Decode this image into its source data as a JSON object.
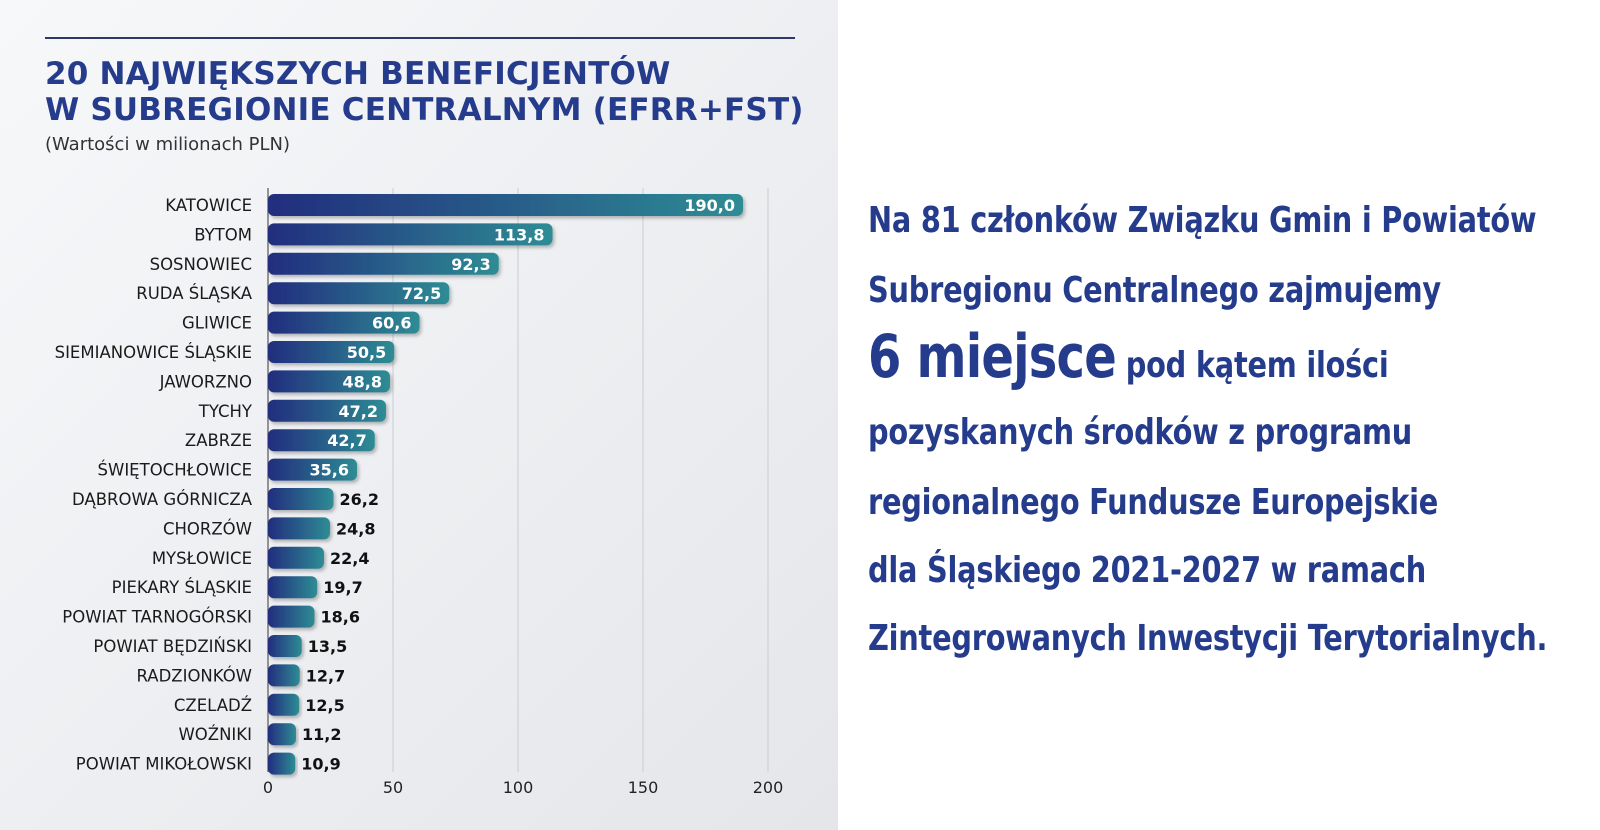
{
  "chart_data": {
    "type": "bar",
    "orientation": "horizontal",
    "title_line1": "20 NAJWIĘKSZYCH BENEFICJENTÓW",
    "title_line2": "W SUBREGIONIE CENTRALNYM (EFRR+FST)",
    "subtitle": "(Wartości w milionach PLN)",
    "xlim": [
      0,
      200
    ],
    "xticks": [
      "0",
      "50",
      "100",
      "150",
      "200"
    ],
    "grid": true,
    "colors": {
      "bar_start": "#222d7e",
      "bar_end": "#2e8c94",
      "label_inside": "#ffffff",
      "label_outside": "#111111"
    },
    "categories": [
      "KATOWICE",
      "BYTOM",
      "SOSNOWIEC",
      "RUDA ŚLĄSKA",
      "GLIWICE",
      "SIEMIANOWICE ŚLĄSKIE",
      "JAWORZNO",
      "TYCHY",
      "ZABRZE",
      "ŚWIĘTOCHŁOWICE",
      "DĄBROWA GÓRNICZA",
      "CHORZÓW",
      "MYSŁOWICE",
      "PIEKARY ŚLĄSKIE",
      "POWIAT TARNOGÓRSKI",
      "POWIAT BĘDZIŃSKI",
      "RADZIONKÓW",
      "CZELADŹ",
      "WOŹNIKI",
      "POWIAT MIKOŁOWSKI"
    ],
    "values": [
      190.0,
      113.8,
      92.3,
      72.5,
      60.6,
      50.5,
      48.8,
      47.2,
      42.7,
      35.6,
      26.2,
      24.8,
      22.4,
      19.7,
      18.6,
      13.5,
      12.7,
      12.5,
      11.2,
      10.9
    ],
    "value_labels": [
      "190,0",
      "113,8",
      "92,3",
      "72,5",
      "60,6",
      "50,5",
      "48,8",
      "47,2",
      "42,7",
      "35,6",
      "26,2",
      "24,8",
      "22,4",
      "19,7",
      "18,6",
      "13,5",
      "12,7",
      "12,5",
      "11,2",
      "10,9"
    ]
  },
  "description": {
    "line1": "Na 81 członków Związku Gmin i Powiatów",
    "line2": "Subregionu Centralnego zajmujemy",
    "line3_big": "6 miejsce",
    "line3_rest": " pod kątem ilości",
    "line4": "pozyskanych środków z programu",
    "line5": "regionalnego Fundusze Europejskie",
    "line6": "dla Śląskiego 2021-2027 w ramach",
    "line7": "Zintegrowanych Inwestycji Terytorialnych.",
    "color": "#253b8c"
  }
}
